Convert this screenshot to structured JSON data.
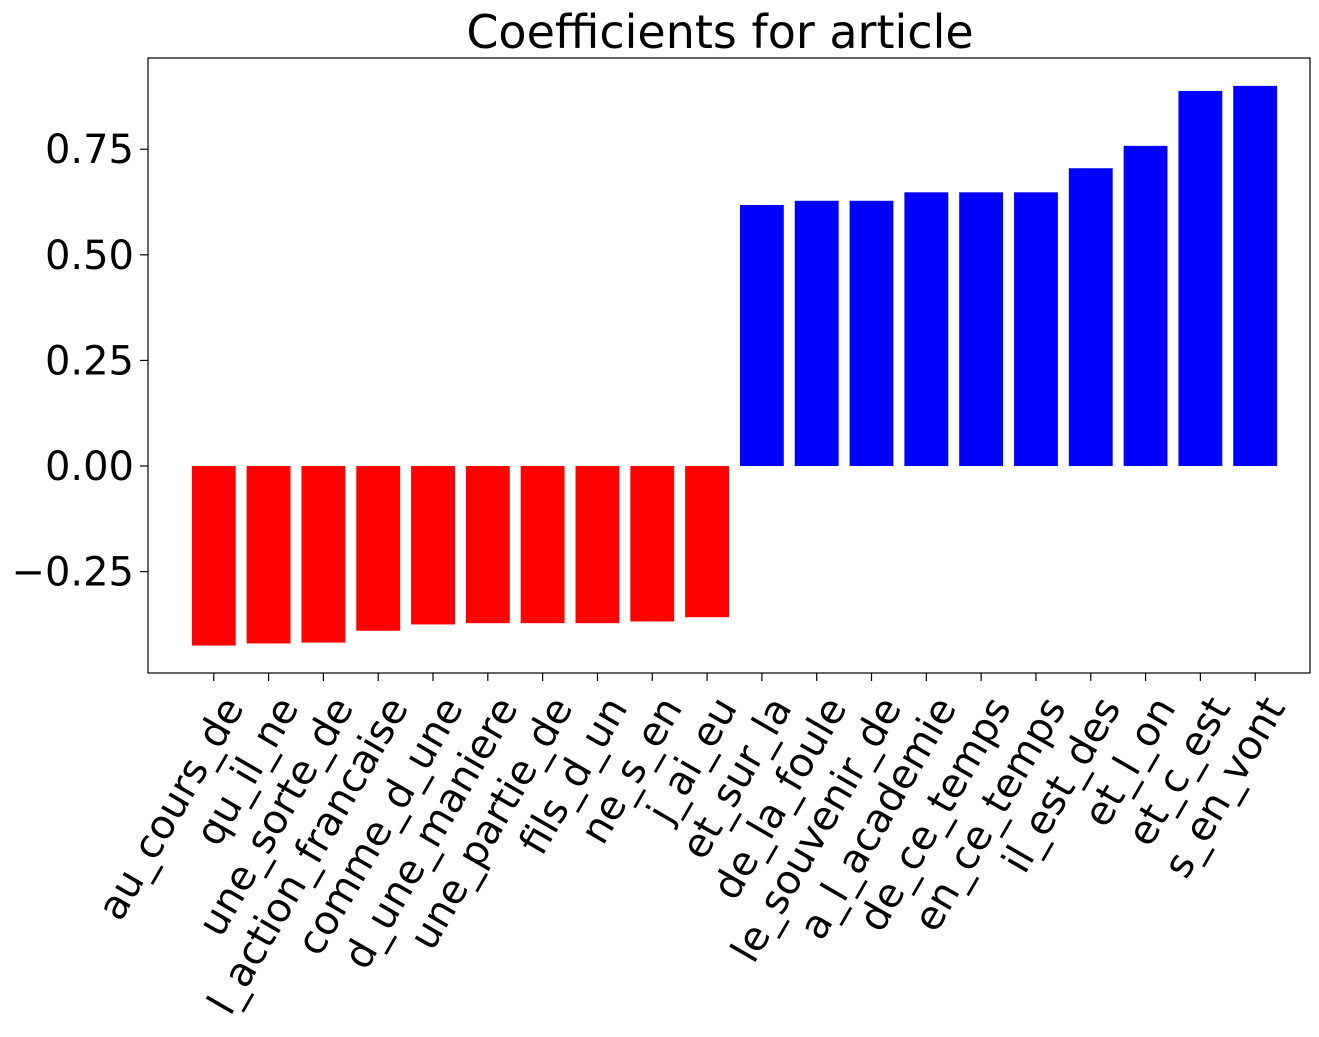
{
  "chart_data": {
    "type": "bar",
    "title": "Coefficients for article",
    "xlabel": "",
    "ylabel": "",
    "categories": [
      "au_cours_de",
      "qu_il_ne",
      "une_sorte_de",
      "l_action_francaise",
      "comme_d_une",
      "d_une_maniere",
      "une_partie_de",
      "fils_d_un",
      "ne_s_en",
      "j_ai_eu",
      "et_sur_la",
      "de_la_foule",
      "le_souvenir_de",
      "a_l_academie",
      "de_ce_temps",
      "en_ce_temps",
      "il_est_des",
      "et_l_on",
      "et_c_est",
      "s_en_vont"
    ],
    "values": [
      -0.425,
      -0.42,
      -0.418,
      -0.39,
      -0.375,
      -0.372,
      -0.372,
      -0.372,
      -0.368,
      -0.358,
      0.618,
      0.628,
      0.628,
      0.648,
      0.648,
      0.648,
      0.705,
      0.758,
      0.888,
      0.9
    ],
    "colors": {
      "negative": "#ff0000",
      "positive": "#0000ff"
    },
    "yticks": [
      -0.25,
      0.0,
      0.25,
      0.5,
      0.75
    ],
    "ytick_labels": [
      "−0.25",
      "0.00",
      "0.25",
      "0.50",
      "0.75"
    ],
    "ylim": [
      -0.49,
      0.966
    ],
    "grid": false,
    "legend": "none"
  }
}
